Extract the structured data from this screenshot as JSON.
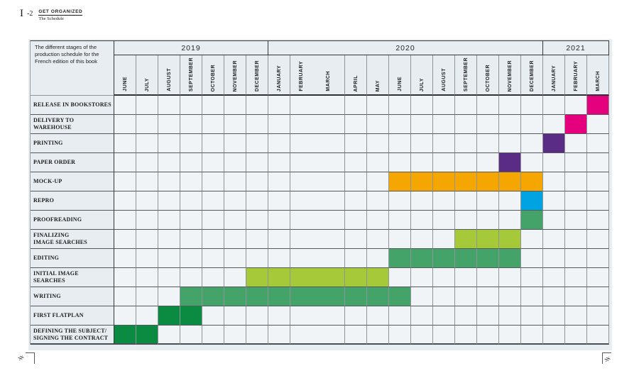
{
  "page": {
    "plate_number": "I",
    "plate_dash_number": "-2",
    "kicker": "GET ORGANIZED",
    "kicker_sub": "The Schedule"
  },
  "table": {
    "description": "The different stages of the production schedule for the French edition of this book",
    "years": [
      {
        "label": "2019",
        "span": 7
      },
      {
        "label": "2020",
        "span": 12
      },
      {
        "label": "2021",
        "span": 3
      }
    ],
    "months": [
      {
        "label": "JUNE",
        "year": "2019"
      },
      {
        "label": "JULY",
        "year": "2019"
      },
      {
        "label": "AUGUST",
        "year": "2019"
      },
      {
        "label": "SEPTEMBER",
        "year": "2019"
      },
      {
        "label": "OCTOBER",
        "year": "2019"
      },
      {
        "label": "NOVEMBER",
        "year": "2019"
      },
      {
        "label": "DECEMBER",
        "year": "2019"
      },
      {
        "label": "JANUARY",
        "year": "2020"
      },
      {
        "label": "FEBRUARY",
        "year": "2020",
        "merge_right": true
      },
      {
        "label": "MARCH",
        "year": "2020",
        "wide": true
      },
      {
        "label": "APRIL",
        "year": "2020"
      },
      {
        "label": "MAY",
        "year": "2020"
      },
      {
        "label": "JUNE",
        "year": "2020"
      },
      {
        "label": "JULY",
        "year": "2020"
      },
      {
        "label": "AUGUST",
        "year": "2020"
      },
      {
        "label": "SEPTEMBER",
        "year": "2020"
      },
      {
        "label": "OCTOBER",
        "year": "2020"
      },
      {
        "label": "NOVEMBER",
        "year": "2020"
      },
      {
        "label": "DECEMBER",
        "year": "2020"
      },
      {
        "label": "JANUARY",
        "year": "2021"
      },
      {
        "label": "FEBRUARY",
        "year": "2021"
      },
      {
        "label": "MARCH",
        "year": "2021"
      }
    ],
    "colors": {
      "pink": "#E5007E",
      "purple": "#5B2C86",
      "orange": "#F6A600",
      "blue": "#00A3E1",
      "green": "#44A368",
      "lime": "#A6C939",
      "darkgreen": "#0B8A42"
    },
    "tasks": [
      {
        "label": "RELEASE IN BOOKSTORES",
        "color": "pink",
        "start": 21,
        "end": 21
      },
      {
        "label": "DELIVERY TO WAREHOUSE",
        "color": "pink",
        "start": 20,
        "end": 20
      },
      {
        "label": "PRINTING",
        "color": "purple",
        "start": 19,
        "end": 19
      },
      {
        "label": "PAPER ORDER",
        "color": "purple",
        "start": 17,
        "end": 17
      },
      {
        "label": "MOCK-UP",
        "color": "orange",
        "start": 12,
        "end": 18
      },
      {
        "label": "REPRO",
        "color": "blue",
        "start": 18,
        "end": 18
      },
      {
        "label": "PROOFREADING",
        "color": "green",
        "start": 18,
        "end": 18
      },
      {
        "label": "FINALIZING\nIMAGE SEARCHES",
        "color": "lime",
        "start": 15,
        "end": 17
      },
      {
        "label": "EDITING",
        "color": "green",
        "start": 12,
        "end": 17
      },
      {
        "label": "INITIAL IMAGE SEARCHES",
        "color": "lime",
        "start": 6,
        "end": 11
      },
      {
        "label": "WRITING",
        "color": "green",
        "start": 3,
        "end": 12
      },
      {
        "label": "FIRST FLATPLAN",
        "color": "darkgreen",
        "start": 2,
        "end": 3
      },
      {
        "label": "DEFINING THE SUBJECT/\nSIGNING THE CONTRACT",
        "color": "darkgreen",
        "start": 0,
        "end": 1
      }
    ]
  },
  "chart_data": {
    "type": "table",
    "subtype": "gantt",
    "title": "The different stages of the production schedule for the French edition of this book",
    "x_axis_groups": [
      "2019",
      "2020",
      "2021"
    ],
    "columns": [
      "JUNE 2019",
      "JULY 2019",
      "AUGUST 2019",
      "SEPTEMBER 2019",
      "OCTOBER 2019",
      "NOVEMBER 2019",
      "DECEMBER 2019",
      "JANUARY 2020",
      "FEBRUARY 2020",
      "MARCH 2020",
      "APRIL 2020",
      "MAY 2020",
      "JUNE 2020",
      "JULY 2020",
      "AUGUST 2020",
      "SEPTEMBER 2020",
      "OCTOBER 2020",
      "NOVEMBER 2020",
      "DECEMBER 2020",
      "JANUARY 2021",
      "FEBRUARY 2021",
      "MARCH 2021"
    ],
    "rows": [
      {
        "task": "RELEASE IN BOOKSTORES",
        "from": "MARCH 2021",
        "to": "MARCH 2021",
        "color": "#E5007E"
      },
      {
        "task": "DELIVERY TO WAREHOUSE",
        "from": "FEBRUARY 2021",
        "to": "FEBRUARY 2021",
        "color": "#E5007E"
      },
      {
        "task": "PRINTING",
        "from": "JANUARY 2021",
        "to": "JANUARY 2021",
        "color": "#5B2C86"
      },
      {
        "task": "PAPER ORDER",
        "from": "NOVEMBER 2020",
        "to": "NOVEMBER 2020",
        "color": "#5B2C86"
      },
      {
        "task": "MOCK-UP",
        "from": "JUNE 2020",
        "to": "DECEMBER 2020",
        "color": "#F6A600"
      },
      {
        "task": "REPRO",
        "from": "DECEMBER 2020",
        "to": "DECEMBER 2020",
        "color": "#00A3E1"
      },
      {
        "task": "PROOFREADING",
        "from": "DECEMBER 2020",
        "to": "DECEMBER 2020",
        "color": "#44A368"
      },
      {
        "task": "FINALIZING IMAGE SEARCHES",
        "from": "SEPTEMBER 2020",
        "to": "NOVEMBER 2020",
        "color": "#A6C939"
      },
      {
        "task": "EDITING",
        "from": "JUNE 2020",
        "to": "NOVEMBER 2020",
        "color": "#44A368"
      },
      {
        "task": "INITIAL IMAGE SEARCHES",
        "from": "DECEMBER 2019",
        "to": "MAY 2020",
        "color": "#A6C939"
      },
      {
        "task": "WRITING",
        "from": "SEPTEMBER 2019",
        "to": "JUNE 2020",
        "color": "#44A368"
      },
      {
        "task": "FIRST FLATPLAN",
        "from": "AUGUST 2019",
        "to": "SEPTEMBER 2019",
        "color": "#0B8A42"
      },
      {
        "task": "DEFINING THE SUBJECT/ SIGNING THE CONTRACT",
        "from": "JUNE 2019",
        "to": "JULY 2019",
        "color": "#0B8A42"
      }
    ],
    "legend": "none",
    "grid": true
  }
}
